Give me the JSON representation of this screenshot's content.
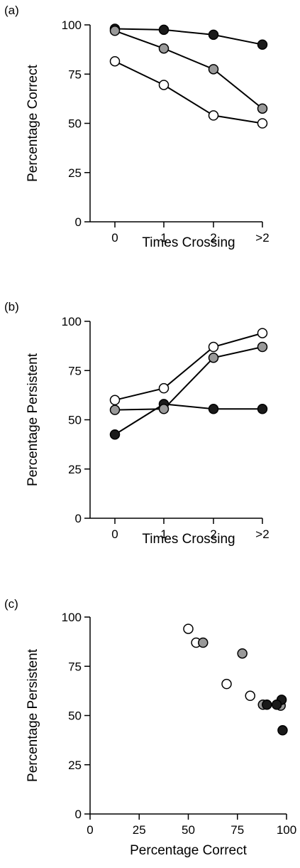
{
  "chart_data": [
    {
      "type": "line",
      "panel_label": "(a)",
      "xlabel": "Times Crossing",
      "ylabel": "Percentage Correct",
      "categories": [
        "0",
        "1",
        "2",
        ">2"
      ],
      "y_ticks": [
        "0",
        "25",
        "50",
        "75",
        "100"
      ],
      "ylim": [
        0,
        100
      ],
      "grid": false,
      "series": [
        {
          "fill": "#1a1a1a",
          "values": [
            98,
            97.5,
            95,
            90
          ]
        },
        {
          "fill": "#999999",
          "values": [
            97,
            88,
            77.5,
            57.5
          ]
        },
        {
          "fill": "#ffffff",
          "values": [
            81.5,
            69.5,
            54,
            50
          ]
        }
      ]
    },
    {
      "type": "line",
      "panel_label": "(b)",
      "xlabel": "Times Crossing",
      "ylabel": "Percentage Persistent",
      "categories": [
        "0",
        "1",
        "2",
        ">2"
      ],
      "y_ticks": [
        "0",
        "25",
        "50",
        "75",
        "100"
      ],
      "ylim": [
        0,
        100
      ],
      "grid": false,
      "series": [
        {
          "fill": "#1a1a1a",
          "values": [
            42.5,
            58,
            55.5,
            55.5
          ]
        },
        {
          "fill": "#999999",
          "values": [
            55,
            55.5,
            81.5,
            87
          ]
        },
        {
          "fill": "#ffffff",
          "values": [
            60,
            66,
            87,
            94
          ]
        }
      ]
    },
    {
      "type": "scatter",
      "panel_label": "(c)",
      "xlabel": "Percentage Correct",
      "ylabel": "Percentage Persistent",
      "x_ticks": [
        "0",
        "25",
        "50",
        "75",
        "100"
      ],
      "y_ticks": [
        "0",
        "25",
        "50",
        "75",
        "100"
      ],
      "xlim": [
        0,
        100
      ],
      "ylim": [
        0,
        100
      ],
      "grid": false,
      "series": [
        {
          "fill": "#1a1a1a",
          "points": [
            [
              98,
              42.5
            ],
            [
              97.5,
              58
            ],
            [
              95,
              55.5
            ],
            [
              90,
              55.5
            ]
          ]
        },
        {
          "fill": "#999999",
          "points": [
            [
              97,
              55
            ],
            [
              88,
              55.5
            ],
            [
              77.5,
              81.5
            ],
            [
              57.5,
              87
            ]
          ]
        },
        {
          "fill": "#ffffff",
          "points": [
            [
              81.5,
              60
            ],
            [
              69.5,
              66
            ],
            [
              54,
              87
            ],
            [
              50,
              94
            ]
          ]
        }
      ]
    }
  ]
}
